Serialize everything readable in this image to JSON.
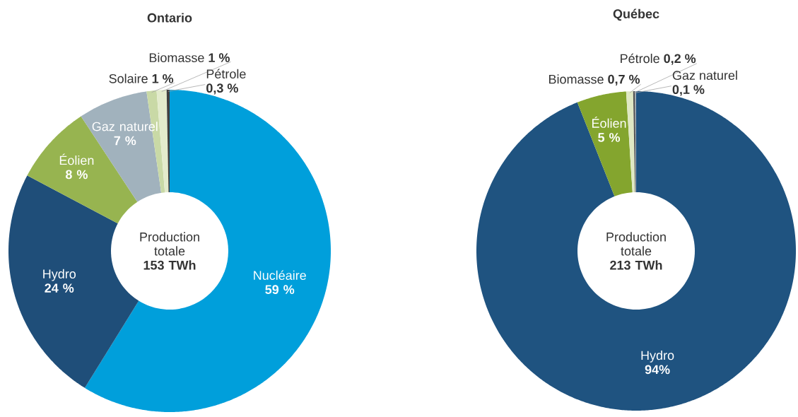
{
  "chart_data": [
    {
      "type": "donut",
      "title": "Ontario",
      "categories": [
        "Nucléaire",
        "Hydro",
        "Éolien",
        "Gaz naturel",
        "Solaire",
        "Biomasse",
        "Pétrole"
      ],
      "values": [
        59,
        24,
        8,
        7,
        1,
        1,
        0.3
      ],
      "colors": [
        "#009fdb",
        "#1f4e79",
        "#97b450",
        "#a1b2bd",
        "#c9d9a6",
        "#e3ebcc",
        "#404040"
      ],
      "value_labels": [
        "59 %",
        "24 %",
        "8 %",
        "7 %",
        "1 %",
        "1 %",
        "0,3 %"
      ],
      "annotations": [
        "Production totale",
        "153 TWh"
      ]
    },
    {
      "type": "donut",
      "title": "Québec",
      "categories": [
        "Hydro",
        "Éolien",
        "Biomasse",
        "Pétrole",
        "Gaz naturel"
      ],
      "values": [
        94,
        5,
        0.7,
        0.2,
        0.1
      ],
      "colors": [
        "#1f5380",
        "#84a52e",
        "#dfe8c4",
        "#555555",
        "#a8b5bf"
      ],
      "value_labels": [
        "94%",
        "5 %",
        "0,7 %",
        "0,2 %",
        "0,1 %"
      ],
      "annotations": [
        "Production totale",
        "213 TWh"
      ]
    }
  ]
}
